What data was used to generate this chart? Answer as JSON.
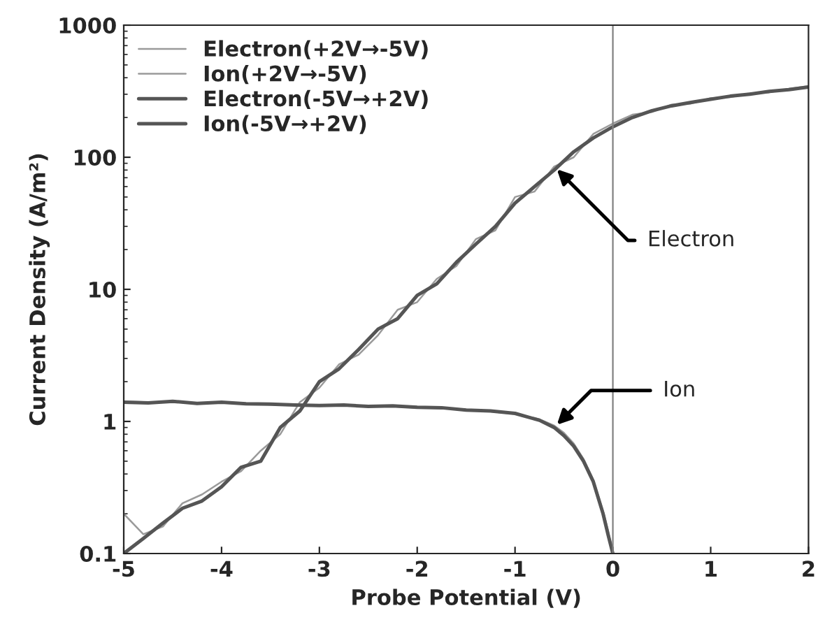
{
  "chart_data": {
    "type": "line",
    "xlabel": "Probe Potential (V)",
    "ylabel": "Current Density (A/m²)",
    "xlim": [
      -5,
      2
    ],
    "xticks": [
      -5,
      -4,
      -3,
      -2,
      -1,
      0,
      1,
      2
    ],
    "ylim": [
      0.1,
      1000
    ],
    "yticks": [
      0.1,
      1,
      10,
      100,
      1000
    ],
    "log": "y",
    "grid": false,
    "legend": "top left",
    "marker": "none",
    "line_style": "solid",
    "x": [
      -5,
      -4.8,
      -4.6,
      -4.4,
      -4.2,
      -4,
      -3.8,
      -3.6,
      -3.4,
      -3.2,
      -3,
      -2.8,
      -2.6,
      -2.4,
      -2.2,
      -2,
      -1.8,
      -1.6,
      -1.4,
      -1.2,
      -1,
      -0.8,
      -0.6,
      -0.4,
      -0.2,
      0,
      0.2,
      0.4,
      0.6,
      0.8,
      1,
      1.2,
      1.4,
      1.6,
      1.8,
      2
    ],
    "series": [
      {
        "name": "Electron(+2V→-5V)",
        "color": "#9a9a9a",
        "values": [
          0.2,
          0.14,
          0.16,
          0.24,
          0.28,
          0.35,
          0.42,
          0.6,
          0.8,
          1.4,
          1.8,
          2.7,
          3.2,
          4.5,
          7,
          8,
          12,
          15,
          24,
          28,
          50,
          55,
          85,
          100,
          150,
          180,
          210,
          220,
          250,
          255,
          280,
          285,
          305,
          310,
          330,
          345
        ]
      },
      {
        "name": "Ion(+2V→-5V)",
        "color": "#9a9a9a",
        "x": [
          -5,
          -4.75,
          -4.5,
          -4.25,
          -4,
          -3.75,
          -3.5,
          -3.25,
          -3,
          -2.75,
          -2.5,
          -2.25,
          -2,
          -1.75,
          -1.5,
          -1.25,
          -1,
          -0.75,
          -0.6,
          -0.5,
          -0.4,
          -0.3,
          -0.2,
          -0.1,
          -0.05,
          0
        ],
        "values": [
          1.42,
          1.4,
          1.4,
          1.38,
          1.39,
          1.37,
          1.34,
          1.34,
          1.31,
          1.32,
          1.31,
          1.3,
          1.27,
          1.26,
          1.23,
          1.19,
          1.14,
          1.04,
          0.93,
          0.82,
          0.68,
          0.52,
          0.36,
          0.21,
          0.15,
          0.1
        ]
      },
      {
        "name": "Electron(-5V→+2V)",
        "color": "#555555",
        "values": [
          0.1,
          0.13,
          0.17,
          0.22,
          0.25,
          0.32,
          0.45,
          0.5,
          0.9,
          1.2,
          2.0,
          2.5,
          3.5,
          5,
          6,
          9,
          11,
          16,
          22,
          30,
          45,
          60,
          80,
          110,
          140,
          170,
          200,
          225,
          245,
          260,
          275,
          290,
          300,
          315,
          325,
          340
        ]
      },
      {
        "name": "Ion(-5V→+2V)",
        "color": "#555555",
        "x": [
          -5,
          -4.75,
          -4.5,
          -4.25,
          -4,
          -3.75,
          -3.5,
          -3.25,
          -3,
          -2.75,
          -2.5,
          -2.25,
          -2,
          -1.75,
          -1.5,
          -1.25,
          -1,
          -0.75,
          -0.6,
          -0.5,
          -0.4,
          -0.3,
          -0.2,
          -0.1,
          -0.05,
          0
        ],
        "values": [
          1.4,
          1.38,
          1.42,
          1.37,
          1.4,
          1.36,
          1.35,
          1.33,
          1.32,
          1.33,
          1.3,
          1.31,
          1.28,
          1.27,
          1.22,
          1.2,
          1.15,
          1.02,
          0.9,
          0.78,
          0.65,
          0.5,
          0.35,
          0.2,
          0.14,
          0.1
        ]
      }
    ],
    "ref_lines": [
      {
        "axis": "x",
        "value": 0,
        "color": "#808080",
        "line_style": "solid"
      }
    ],
    "annotations": [
      {
        "text": "Electron",
        "x": -0.6,
        "y": 85
      },
      {
        "text": "Ion",
        "x": -0.6,
        "y": 0.9
      }
    ]
  }
}
